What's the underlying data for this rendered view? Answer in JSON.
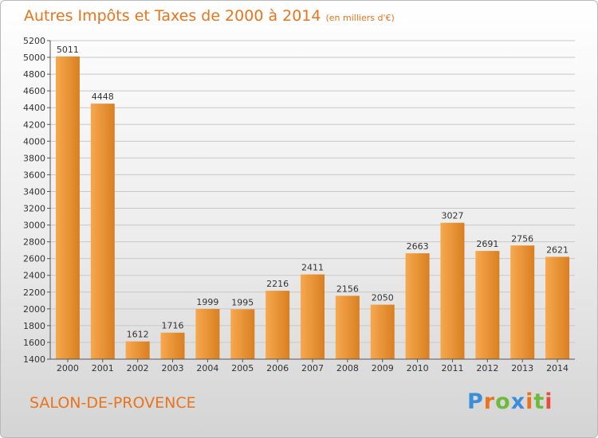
{
  "title": "Autres Impôts et Taxes de 2000 à 2014",
  "title_unit": "(en milliers d'€)",
  "city": "SALON-DE-PROVENCE",
  "logo_text": "Proxiti",
  "logo_colors": [
    "#3a8fd6",
    "#e8741c",
    "#6dbb3c",
    "#3a8fd6",
    "#e8741c",
    "#6dbb3c",
    "#e84c3c"
  ],
  "colors": {
    "accent": "#e8741c",
    "bar_light": "#f7a84e",
    "bar_dark": "#d97f22",
    "grid": "#c8c8c8"
  },
  "chart_data": {
    "type": "bar",
    "title": "Autres Impôts et Taxes de 2000 à 2014",
    "categories": [
      "2000",
      "2001",
      "2002",
      "2003",
      "2004",
      "2005",
      "2006",
      "2007",
      "2008",
      "2009",
      "2010",
      "2011",
      "2012",
      "2013",
      "2014"
    ],
    "values": [
      5011,
      4448,
      1612,
      1716,
      1999,
      1995,
      2216,
      2411,
      2156,
      2050,
      2663,
      3027,
      2691,
      2756,
      2621
    ],
    "ylim": [
      1400,
      5200
    ],
    "ytick_step": 200,
    "grid": true,
    "xlabel": "",
    "ylabel": ""
  }
}
